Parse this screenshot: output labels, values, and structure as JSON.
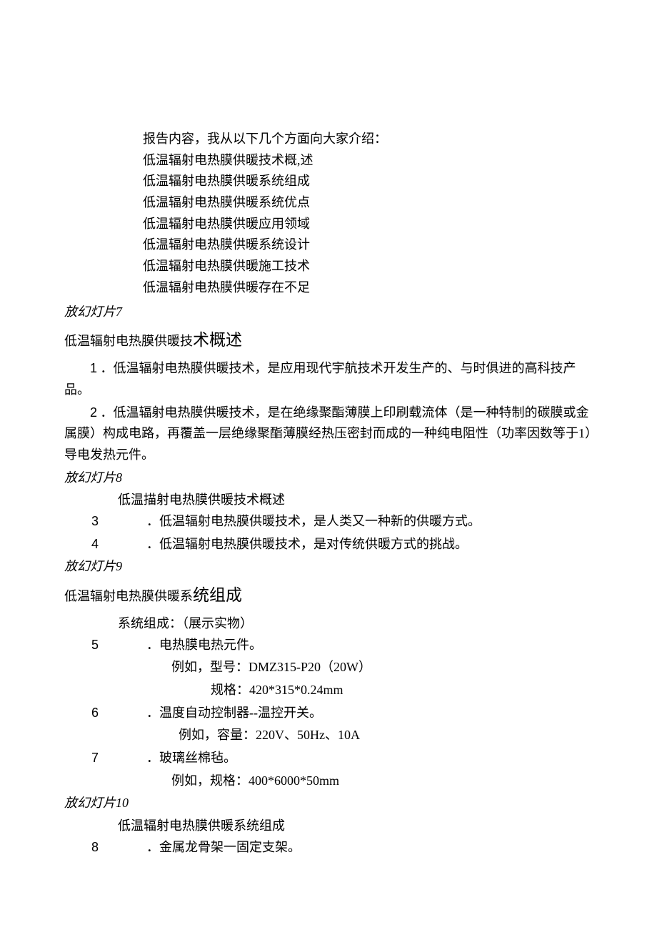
{
  "page": {
    "background_color": "#ffffff",
    "text_color": "#000000",
    "body_font": "SimSun",
    "italic_font": "KaiTi",
    "base_fontsize": 18,
    "title_large_fontsize": 23
  },
  "intro": {
    "lead": "报告内容，我从以下几个方面向大家介绍：",
    "items": [
      "低温辐射电热膜供暖技术概,述",
      "低温辐射电热膜供暖系统组成",
      "低温辐射电热膜供暖系统优点",
      "低温辐射电热膜供暖应用领域",
      "低温辐射电热膜供暖系统设计",
      "低温辐射电热膜供暖施工技术",
      "低温辐射电热膜供暖存在不足"
    ]
  },
  "slide7": {
    "marker": "放幻灯片7",
    "title_a": "低温辐射电热膜供暖技",
    "title_b": "术概述",
    "p1_num": "1",
    "p1": "．低温辐射电热膜供暖技术，是应用现代宇航技术开发生产的、与时俱进的高科技产品。",
    "p2_num": "2",
    "p2": "．低温辐射电热膜供暖技术，是在绝缘聚酯薄膜上印刷载流体（是一种特制的碳膜或金属膜）构成电路，再覆盖一层绝缘聚酯薄膜经热压密封而成的一种纯电阻性（功率因数等于1）导电发热元件。"
  },
  "slide8": {
    "marker": "放幻灯片8",
    "heading": "低温描射电热膜供暖技术概述",
    "l3_num": "3",
    "l3": "．低温辐射电热膜供暖技术，是人类又一种新的供暖方式。",
    "l4_num": "4",
    "l4": "．低温辐射电热膜供暖技术，是对传统供暖方式的挑战。"
  },
  "slide9": {
    "marker": "放幻灯片9",
    "title_a": "低温辐射电热膜供暖系",
    "title_b": "统组成",
    "sub": "系统组成：（展示实物）",
    "l5_num": "5",
    "l5": "．电热膜电热元件。",
    "l5_ex1": "例如，型号：DMZ315-P20（20W）",
    "l5_ex2": "规格：420*315*0.24mm",
    "l6_num": "6",
    "l6": "．温度自动控制器--温控开关。",
    "l6_ex1": "例如，容量：220V、50Hz、10A",
    "l7_num": "7",
    "l7": "．玻璃丝棉毡。",
    "l7_ex1": "例如，规格：400*6000*50mm"
  },
  "slide10": {
    "marker": "放幻灯片10",
    "heading": "低温辐射电热膜供暖系统组成",
    "l8_num": "8",
    "l8": "．金属龙骨架一固定支架。"
  }
}
